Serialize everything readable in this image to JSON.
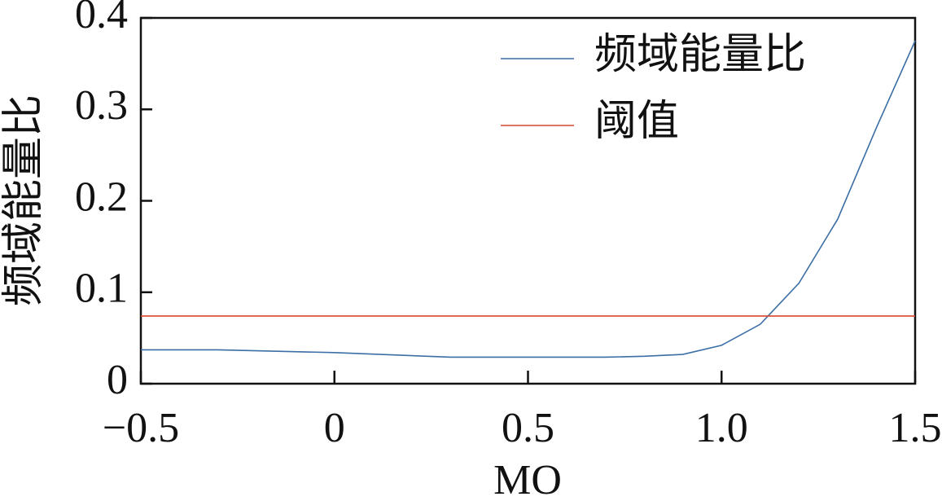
{
  "chart_data": {
    "type": "line",
    "xlabel": "MO",
    "ylabel": "频域能量比",
    "xlim": [
      -0.5,
      1.5
    ],
    "xticks": [
      {
        "value": -0.5,
        "label": "−0.5"
      },
      0,
      0.5,
      {
        "value": 1,
        "label": "1.0"
      },
      1.5
    ],
    "ylim": [
      0,
      0.4
    ],
    "yticks": [
      0,
      0.1,
      0.2,
      0.3,
      0.4
    ],
    "grid": false,
    "legend": "upper right",
    "series": [
      {
        "name": "频域能量比",
        "color": "#3a6ea5",
        "x": [
          -0.5,
          -0.3,
          0,
          0.3,
          0.5,
          0.7,
          0.8,
          0.9,
          1.0,
          1.1,
          1.2,
          1.3,
          1.4,
          1.5
        ],
        "values": [
          0.037,
          0.037,
          0.034,
          0.029,
          0.029,
          0.029,
          0.03,
          0.032,
          0.042,
          0.065,
          0.11,
          0.18,
          0.28,
          0.375
        ]
      },
      {
        "name": "阈值",
        "color": "#d9442b",
        "x": [
          -0.5,
          1.5
        ],
        "values": [
          0.074,
          0.074
        ]
      }
    ]
  }
}
